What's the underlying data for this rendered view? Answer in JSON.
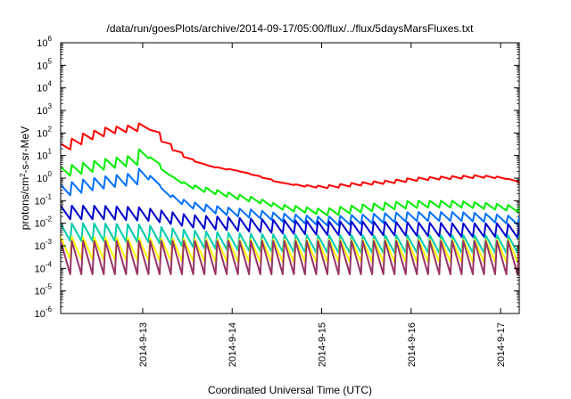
{
  "chart_data": {
    "type": "line",
    "title": "/data/run/goesPlots/archive/2014-09-17/05:00/flux/../flux/5daysMarsFluxes.txt",
    "xlabel": "Coordinated Universal Time (UTC)",
    "ylabel": {
      "prefix": "protons/cm",
      "sup": "2",
      "suffix": "-s-sr-MeV"
    },
    "y_scale": "log",
    "ylim": [
      1e-06,
      1000000.0
    ],
    "y_ticks": [
      {
        "base": "10",
        "exp": "-6",
        "value": 1e-06
      },
      {
        "base": "10",
        "exp": "-5",
        "value": 1e-05
      },
      {
        "base": "10",
        "exp": "-4",
        "value": 0.0001
      },
      {
        "base": "10",
        "exp": "-3",
        "value": 0.001
      },
      {
        "base": "10",
        "exp": "-2",
        "value": 0.01
      },
      {
        "base": "10",
        "exp": "-1",
        "value": 0.1
      },
      {
        "base": "10",
        "exp": "0",
        "value": 1
      },
      {
        "base": "10",
        "exp": "1",
        "value": 10
      },
      {
        "base": "10",
        "exp": "2",
        "value": 100
      },
      {
        "base": "10",
        "exp": "3",
        "value": 1000
      },
      {
        "base": "10",
        "exp": "4",
        "value": 10000
      },
      {
        "base": "10",
        "exp": "5",
        "value": 100000
      },
      {
        "base": "10",
        "exp": "6",
        "value": 1000000
      }
    ],
    "xlim": [
      "2014-09-12T02:00",
      "2014-09-17T05:00"
    ],
    "x_ticks": [
      "2014-9-13",
      "2014-9-14",
      "2014-9-15",
      "2014-9-16",
      "2014-9-17"
    ],
    "x_tick_dates": [
      "2014-09-13",
      "2014-09-14",
      "2014-09-15",
      "2014-09-16",
      "2014-09-17"
    ],
    "grid": false,
    "legend": "none",
    "series": [
      {
        "color": "#ff0000",
        "x": [
          "2014-09-12T02:00",
          "2014-09-12T08:00",
          "2014-09-12T14:00",
          "2014-09-12T20:00",
          "2014-09-12T23:00",
          "2014-09-13T02:00",
          "2014-09-13T06:00",
          "2014-09-13T12:00",
          "2014-09-13T18:00",
          "2014-09-14T00:00",
          "2014-09-14T06:00",
          "2014-09-14T12:00",
          "2014-09-14T18:00",
          "2014-09-15T00:00",
          "2014-09-15T06:00",
          "2014-09-15T12:00",
          "2014-09-15T18:00",
          "2014-09-16T00:00",
          "2014-09-16T06:00",
          "2014-09-16T12:00",
          "2014-09-16T18:00",
          "2014-09-17T00:00",
          "2014-09-17T05:00"
        ],
        "values": [
          25,
          70,
          130,
          160,
          200,
          120,
          25,
          6,
          3,
          2.2,
          1.2,
          0.6,
          0.45,
          0.4,
          0.5,
          0.6,
          0.7,
          0.9,
          1.0,
          1.1,
          1.2,
          1.0,
          0.6
        ],
        "sawtooth": [
          1.8,
          1.8,
          1.8,
          1.8,
          1.8,
          1.3,
          1.3,
          1.3,
          1.3,
          1.2,
          1.2,
          1.2,
          1.3,
          1.3,
          1.3,
          1.3,
          1.3,
          1.3,
          1.3,
          1.3,
          1.3,
          1.3,
          1.3
        ]
      },
      {
        "color": "#00ee00",
        "x": [
          "2014-09-12T02:00",
          "2014-09-12T08:00",
          "2014-09-12T14:00",
          "2014-09-12T20:00",
          "2014-09-12T23:00",
          "2014-09-13T02:00",
          "2014-09-13T06:00",
          "2014-09-13T12:00",
          "2014-09-13T18:00",
          "2014-09-14T00:00",
          "2014-09-14T06:00",
          "2014-09-14T12:00",
          "2014-09-14T18:00",
          "2014-09-15T00:00",
          "2014-09-15T06:00",
          "2014-09-15T12:00",
          "2014-09-15T18:00",
          "2014-09-16T00:00",
          "2014-09-16T06:00",
          "2014-09-16T12:00",
          "2014-09-16T18:00",
          "2014-09-17T00:00",
          "2014-09-17T05:00"
        ],
        "values": [
          2,
          3,
          4.5,
          6,
          12,
          6,
          1.2,
          0.4,
          0.25,
          0.15,
          0.1,
          0.05,
          0.04,
          0.03,
          0.04,
          0.05,
          0.06,
          0.07,
          0.07,
          0.07,
          0.06,
          0.05,
          0.04
        ],
        "sawtooth": [
          2.5,
          2.5,
          2.5,
          2.5,
          2.5,
          2,
          2,
          2,
          2,
          2,
          2,
          2,
          2,
          2,
          2,
          2,
          2,
          2,
          2,
          2,
          2,
          2,
          2
        ]
      },
      {
        "color": "#0070ff",
        "x": [
          "2014-09-12T02:00",
          "2014-09-12T08:00",
          "2014-09-12T14:00",
          "2014-09-12T20:00",
          "2014-09-12T23:00",
          "2014-09-13T02:00",
          "2014-09-13T06:00",
          "2014-09-13T12:00",
          "2014-09-13T18:00",
          "2014-09-14T00:00",
          "2014-09-14T06:00",
          "2014-09-14T12:00",
          "2014-09-14T18:00",
          "2014-09-15T00:00",
          "2014-09-15T06:00",
          "2014-09-15T12:00",
          "2014-09-15T18:00",
          "2014-09-16T00:00",
          "2014-09-16T06:00",
          "2014-09-16T12:00",
          "2014-09-16T18:00",
          "2014-09-17T00:00",
          "2014-09-17T05:00"
        ],
        "values": [
          0.3,
          0.5,
          0.7,
          0.9,
          1.5,
          0.8,
          0.15,
          0.06,
          0.04,
          0.03,
          0.025,
          0.018,
          0.015,
          0.012,
          0.014,
          0.016,
          0.018,
          0.02,
          0.02,
          0.02,
          0.018,
          0.015,
          0.012
        ],
        "sawtooth": [
          3,
          3,
          3,
          3,
          3,
          2.5,
          2.5,
          2.5,
          2.5,
          2.5,
          2.5,
          2.5,
          2.5,
          2.5,
          2.5,
          2.5,
          2.5,
          2.5,
          2.5,
          2.5,
          2.5,
          2.5,
          2.5
        ]
      },
      {
        "color": "#0000cc",
        "x": [
          "2014-09-12T02:00",
          "2014-09-12T12:00",
          "2014-09-13T00:00",
          "2014-09-13T12:00",
          "2014-09-14T00:00",
          "2014-09-14T12:00",
          "2014-09-15T00:00",
          "2014-09-15T12:00",
          "2014-09-16T00:00",
          "2014-09-16T12:00",
          "2014-09-17T00:00",
          "2014-09-17T05:00"
        ],
        "values": [
          0.03,
          0.03,
          0.025,
          0.012,
          0.009,
          0.007,
          0.006,
          0.006,
          0.0055,
          0.005,
          0.005,
          0.004
        ],
        "sawtooth": [
          4,
          4,
          4,
          4,
          4,
          4,
          4,
          4,
          4,
          4,
          4,
          4
        ]
      },
      {
        "color": "#00ccaa",
        "x": [
          "2014-09-12T02:00",
          "2014-09-12T12:00",
          "2014-09-13T00:00",
          "2014-09-13T12:00",
          "2014-09-14T00:00",
          "2014-09-14T12:00",
          "2014-09-15T00:00",
          "2014-09-15T12:00",
          "2014-09-16T00:00",
          "2014-09-16T12:00",
          "2014-09-17T00:00",
          "2014-09-17T05:00"
        ],
        "values": [
          0.004,
          0.004,
          0.0035,
          0.002,
          0.0015,
          0.0013,
          0.0012,
          0.0012,
          0.0012,
          0.0012,
          0.0012,
          0.0012
        ],
        "sawtooth": [
          6,
          6,
          6,
          6,
          6,
          6,
          6,
          6,
          6,
          6,
          6,
          6
        ]
      },
      {
        "color": "#ffff00",
        "x": [
          "2014-09-12T02:00",
          "2014-09-13T00:00",
          "2014-09-14T00:00",
          "2014-09-15T00:00",
          "2014-09-16T00:00",
          "2014-09-17T05:00"
        ],
        "values": [
          0.0008,
          0.0007,
          0.0006,
          0.0006,
          0.0006,
          0.0006
        ],
        "sawtooth": [
          10,
          10,
          10,
          10,
          10,
          10
        ]
      },
      {
        "color": "#993366",
        "x": [
          "2014-09-12T02:00",
          "2014-09-13T00:00",
          "2014-09-14T00:00",
          "2014-09-15T00:00",
          "2014-09-16T00:00",
          "2014-09-17T05:00"
        ],
        "values": [
          0.0003,
          0.0003,
          0.0003,
          0.0003,
          0.0003,
          0.0003
        ],
        "sawtooth": [
          30,
          30,
          30,
          30,
          30,
          30
        ]
      }
    ]
  }
}
